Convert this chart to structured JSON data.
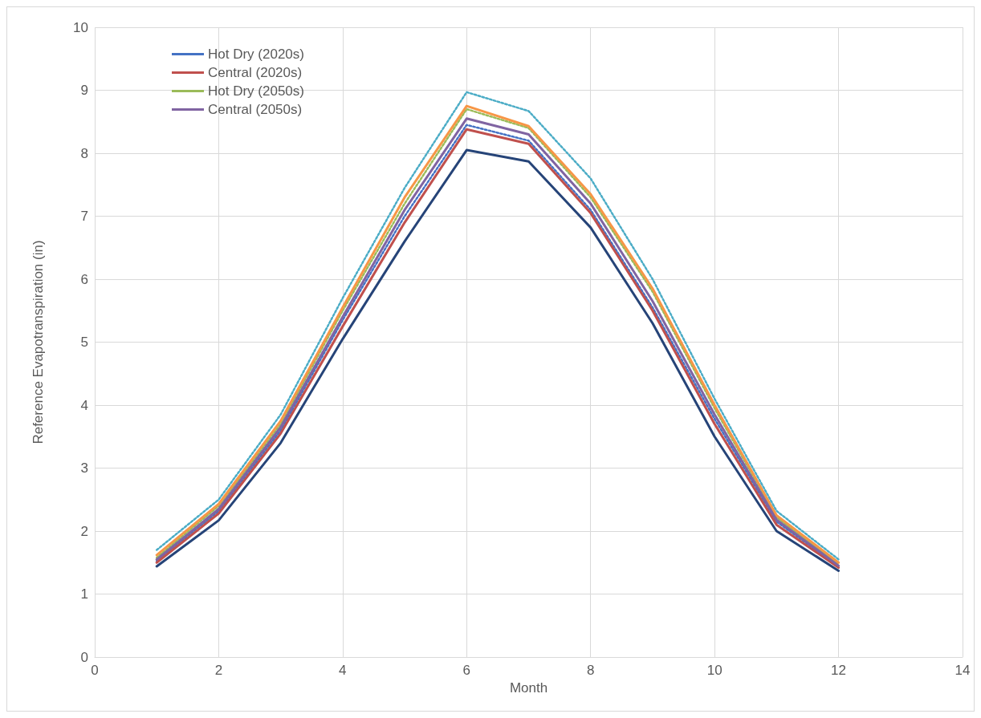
{
  "chart_data": {
    "type": "line",
    "xlabel": "Month",
    "ylabel": "Reference Evapotranspiration (in)",
    "xlim": [
      0,
      14
    ],
    "xticks": [
      0,
      2,
      4,
      6,
      8,
      10,
      12,
      14
    ],
    "ylim": [
      0,
      10
    ],
    "yticks": [
      0,
      1,
      2,
      3,
      4,
      5,
      6,
      7,
      8,
      9,
      10
    ],
    "grid": true,
    "legend": "top left",
    "marker": "none",
    "x": [
      1,
      2,
      3,
      4,
      5,
      6,
      7,
      8,
      9,
      10,
      11,
      12
    ],
    "series": [
      {
        "color": "#264478",
        "line_style": "solid",
        "values": [
          1.44,
          2.17,
          3.4,
          5.05,
          6.6,
          8.05,
          7.87,
          6.82,
          5.3,
          3.5,
          2.0,
          1.37
        ]
      },
      {
        "name": "Hot Dry (2020s)",
        "color": "#4472c4",
        "line_style": "dotted",
        "values": [
          1.53,
          2.32,
          3.6,
          5.35,
          7.0,
          8.45,
          8.2,
          7.1,
          5.55,
          3.78,
          2.15,
          1.44
        ]
      },
      {
        "name": "Central (2020s)",
        "color": "#c0504d",
        "line_style": "solid",
        "values": [
          1.5,
          2.28,
          3.55,
          5.25,
          6.9,
          8.38,
          8.15,
          7.05,
          5.5,
          3.7,
          2.1,
          1.42
        ]
      },
      {
        "name": "Hot Dry (2050s)",
        "color": "#9bbb59",
        "line_style": "dotted",
        "values": [
          1.58,
          2.4,
          3.7,
          5.5,
          7.2,
          8.7,
          8.4,
          7.3,
          5.8,
          3.95,
          2.22,
          1.48
        ]
      },
      {
        "name": "Central (2050s)",
        "color": "#8064a2",
        "line_style": "solid",
        "values": [
          1.55,
          2.35,
          3.65,
          5.4,
          7.1,
          8.55,
          8.3,
          7.2,
          5.65,
          3.85,
          2.18,
          1.45
        ]
      },
      {
        "color": "#f79646",
        "line_style": "solid",
        "values": [
          1.62,
          2.43,
          3.75,
          5.55,
          7.3,
          8.75,
          8.43,
          7.35,
          5.85,
          4.0,
          2.25,
          1.5
        ]
      },
      {
        "color": "#4bacc6",
        "line_style": "dotted",
        "values": [
          1.7,
          2.5,
          3.85,
          5.7,
          7.45,
          8.97,
          8.67,
          7.6,
          6.0,
          4.1,
          2.32,
          1.55
        ]
      }
    ]
  }
}
